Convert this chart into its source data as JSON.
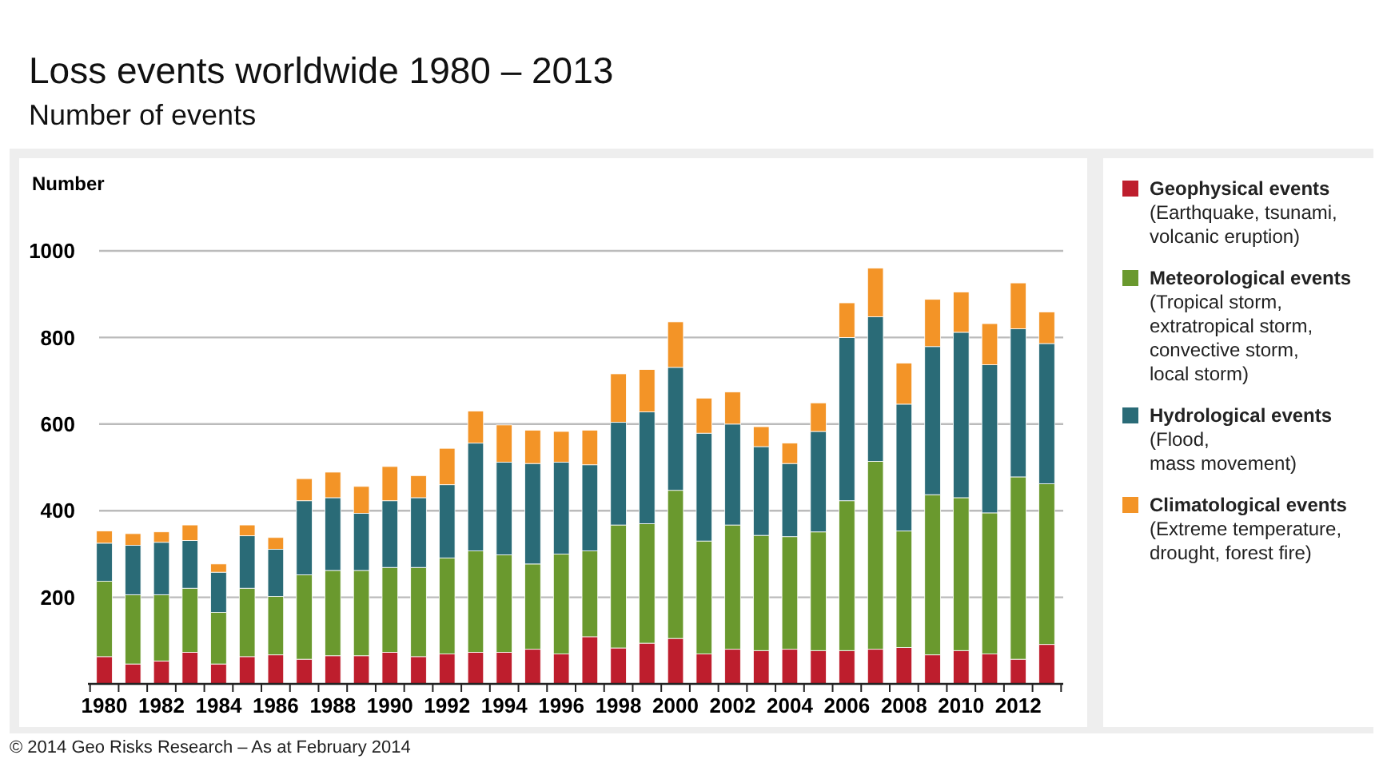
{
  "chart_data": {
    "type": "bar",
    "stacked": true,
    "title": "Loss events worldwide 1980 – 2013",
    "subtitle": "Number of events",
    "ylabel": "Number",
    "categories": [
      "1980",
      null,
      "1982",
      null,
      "1984",
      null,
      "1986",
      null,
      "1988",
      null,
      "1990",
      null,
      "1992",
      null,
      "1994",
      null,
      "1996",
      null,
      "1998",
      null,
      "2000",
      null,
      "2002",
      null,
      "2004",
      null,
      "2006",
      null,
      "2008",
      null,
      "2010",
      null,
      "2012",
      null
    ],
    "series": [
      {
        "name": "Geophysical events\n(Earthquake, tsunami,\nvolcanic eruption)",
        "color": "#be1e2d",
        "values": [
          63,
          46,
          53,
          73,
          46,
          63,
          67,
          57,
          65,
          65,
          73,
          63,
          69,
          73,
          73,
          80,
          69,
          109,
          83,
          94,
          105,
          69,
          80,
          77,
          80,
          77,
          77,
          80,
          84,
          67,
          77,
          69,
          57,
          91
        ]
      },
      {
        "name": "Meteorological events\n(Tropical storm,\nextratropical storm,\nconvective storm,\nlocal storm)",
        "color": "#6a992e",
        "values": [
          174,
          160,
          153,
          148,
          119,
          158,
          135,
          195,
          197,
          197,
          196,
          206,
          222,
          234,
          225,
          197,
          231,
          198,
          284,
          276,
          342,
          261,
          287,
          266,
          260,
          274,
          346,
          434,
          269,
          370,
          353,
          326,
          421,
          371
        ]
      },
      {
        "name": "Hydrological events\n(Flood,\nmass movement)",
        "color": "#2a6b77",
        "values": [
          88,
          114,
          121,
          110,
          93,
          121,
          109,
          171,
          168,
          132,
          154,
          161,
          169,
          249,
          214,
          232,
          212,
          199,
          237,
          258,
          284,
          249,
          233,
          205,
          169,
          232,
          377,
          334,
          293,
          342,
          382,
          342,
          342,
          324
        ]
      },
      {
        "name": "Climatological events\n(Extreme temperature,\ndrought, forest fire)",
        "color": "#f39427",
        "values": [
          28,
          27,
          24,
          36,
          19,
          25,
          27,
          51,
          59,
          62,
          79,
          51,
          84,
          74,
          86,
          77,
          71,
          80,
          112,
          98,
          105,
          81,
          74,
          46,
          47,
          66,
          80,
          112,
          95,
          109,
          93,
          95,
          106,
          73
        ]
      }
    ],
    "ylim": [
      0,
      1000
    ],
    "yticks": [
      {
        "value": 0,
        "label": null
      },
      200,
      400,
      600,
      800,
      1000
    ],
    "grid": "y",
    "legend": "right",
    "annotations": [
      "© 2014 Geo Risks Research – As at February 2014"
    ]
  }
}
